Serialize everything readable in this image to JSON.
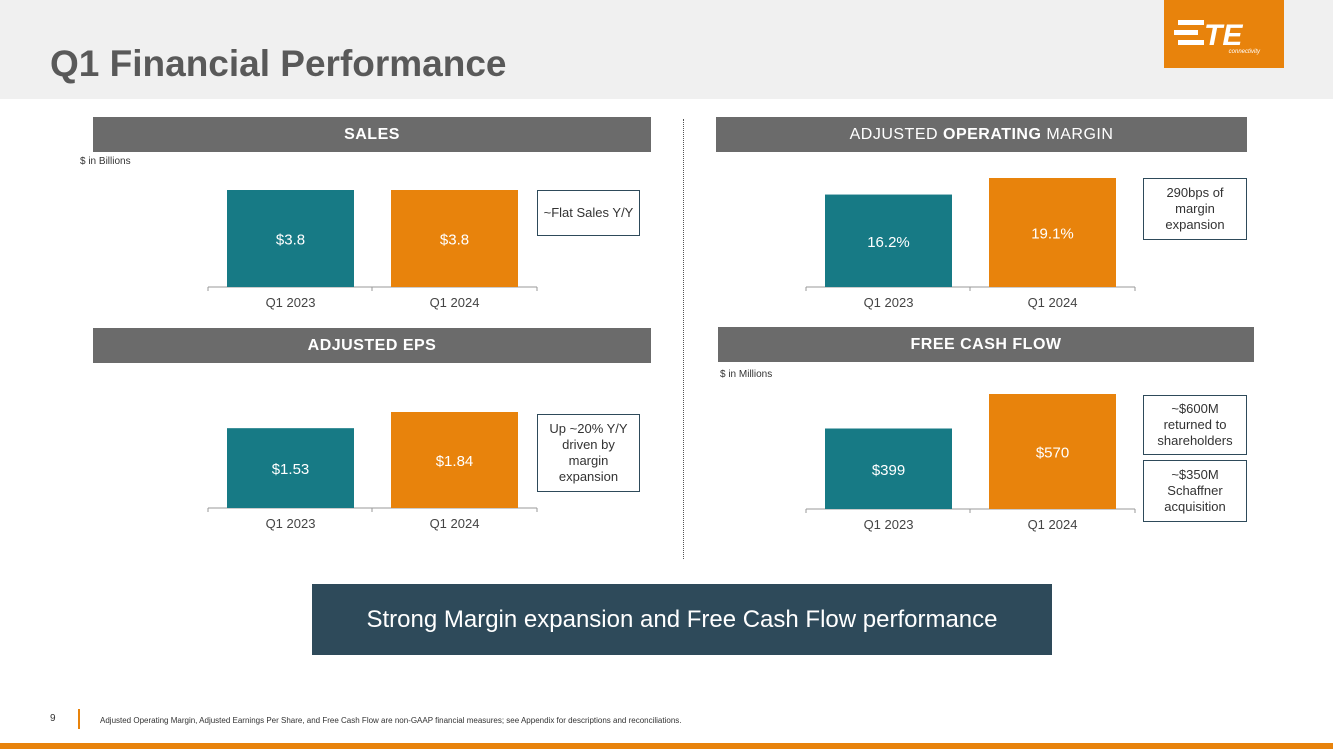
{
  "title": "Q1 Financial Performance",
  "logo": {
    "text": "TE",
    "subtext": "connectivity"
  },
  "colors": {
    "teal": "#177a85",
    "orange": "#e8830c",
    "header_gray": "#6b6b6b",
    "navy": "#2e4a5a"
  },
  "sales": {
    "header": "SALES",
    "unit_note": "$ in Billions",
    "callout": "~Flat Sales Y/Y"
  },
  "margin": {
    "header_pre": "ADJUSTED ",
    "header_bold": "OPERATING",
    "header_post": " MARGIN",
    "callout": "290bps of margin expansion"
  },
  "eps": {
    "header": "ADJUSTED EPS",
    "callout": "Up ~20% Y/Y driven by margin expansion"
  },
  "fcf": {
    "header": "FREE CASH FLOW",
    "unit_note": "$ in Millions",
    "callout1": "~$600M returned to shareholders",
    "callout2": "~$350M Schaffner acquisition"
  },
  "chart_data": [
    {
      "type": "bar",
      "title": "SALES",
      "categories": [
        "Q1 2023",
        "Q1 2024"
      ],
      "values": [
        3.8,
        3.8
      ],
      "labels": [
        "$3.8",
        "$3.8"
      ],
      "ylim": [
        0,
        3.8
      ]
    },
    {
      "type": "bar",
      "title": "ADJUSTED OPERATING MARGIN",
      "categories": [
        "Q1 2023",
        "Q1 2024"
      ],
      "values": [
        16.2,
        19.1
      ],
      "labels": [
        "16.2%",
        "19.1%"
      ],
      "ylim": [
        0,
        19.1
      ]
    },
    {
      "type": "bar",
      "title": "ADJUSTED EPS",
      "categories": [
        "Q1 2023",
        "Q1 2024"
      ],
      "values": [
        1.53,
        1.84
      ],
      "labels": [
        "$1.53",
        "$1.84"
      ],
      "ylim": [
        0,
        1.84
      ]
    },
    {
      "type": "bar",
      "title": "FREE CASH FLOW",
      "categories": [
        "Q1 2023",
        "Q1 2024"
      ],
      "values": [
        399,
        570
      ],
      "labels": [
        "$399",
        "$570"
      ],
      "ylim": [
        0,
        570
      ]
    }
  ],
  "banner": "Strong Margin expansion and Free Cash Flow performance",
  "footer": {
    "page_number": "9",
    "note": "Adjusted Operating Margin, Adjusted Earnings Per Share, and Free Cash Flow are non-GAAP financial measures; see Appendix for descriptions and reconciliations."
  }
}
